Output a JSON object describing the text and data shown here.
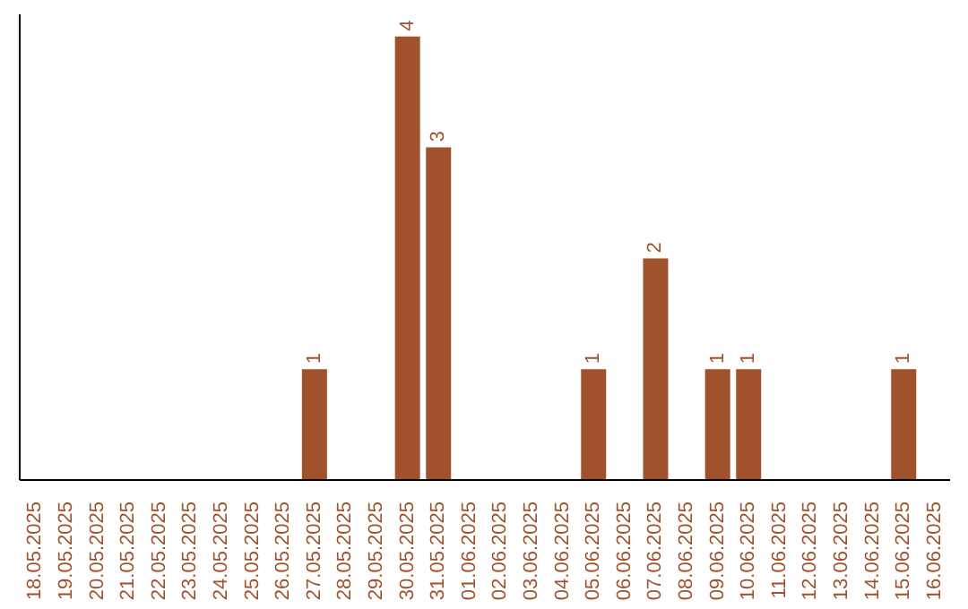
{
  "chart_data": {
    "type": "bar",
    "categories": [
      "18.05.2025",
      "19.05.2025",
      "20.05.2025",
      "21.05.2025",
      "22.05.2025",
      "23.05.2025",
      "24.05.2025",
      "25.05.2025",
      "26.05.2025",
      "27.05.2025",
      "28.05.2025",
      "29.05.2025",
      "30.05.2025",
      "31.05.2025",
      "01.06.2025",
      "02.06.2025",
      "03.06.2025",
      "04.06.2025",
      "05.06.2025",
      "06.06.2025",
      "07.06.2025",
      "08.06.2025",
      "09.06.2025",
      "10.06.2025",
      "11.06.2025",
      "12.06.2025",
      "13.06.2025",
      "14.06.2025",
      "15.06.2025",
      "16.06.2025"
    ],
    "values": [
      0,
      0,
      0,
      0,
      0,
      0,
      0,
      0,
      0,
      1,
      0,
      0,
      4,
      3,
      0,
      0,
      0,
      0,
      1,
      0,
      2,
      0,
      1,
      1,
      0,
      0,
      0,
      0,
      1,
      0
    ],
    "value_labels": [
      null,
      null,
      null,
      null,
      null,
      null,
      null,
      null,
      null,
      "1",
      null,
      null,
      "4",
      "3",
      null,
      null,
      null,
      null,
      "1",
      null,
      "2",
      null,
      "1",
      "1",
      null,
      null,
      null,
      null,
      "1",
      null
    ],
    "color": "#a0522d",
    "tick_labels": "x"
  }
}
